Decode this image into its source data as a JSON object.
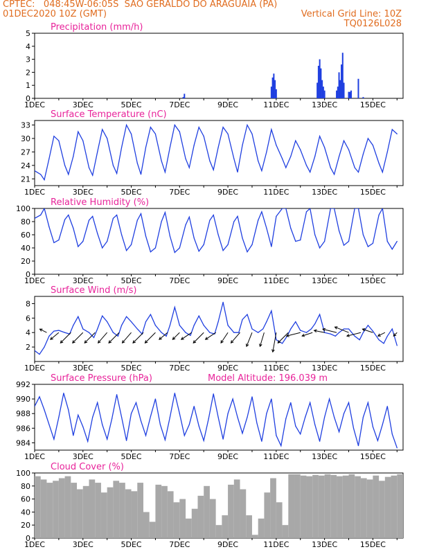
{
  "header": {
    "line1": "CPTEC:   048:45W-06:05S  SAO GERALDO DO ARAGUAIA (PA)",
    "line2_left": "01DEC2020 10Z (GMT)",
    "line2_right": "Vertical Grid Line: 10Z",
    "line3_right": "TQ0126L028"
  },
  "colors": {
    "header_text": "#e06c1f",
    "panel_title": "#e8239a",
    "series_line": "#1f3fe0",
    "cloud_fill": "#a8a8a8",
    "wind_arrow": "#000000"
  },
  "x_tick_labels": [
    "1DEC",
    "3DEC",
    "5DEC",
    "7DEC",
    "9DEC",
    "11DEC",
    "13DEC",
    "15DEC"
  ],
  "x_tick_days": [
    0,
    2,
    4,
    6,
    8,
    10,
    12,
    14
  ],
  "chart_data": [
    {
      "type": "bar",
      "title": "Precipitation  (mm/h)",
      "ylim": [
        0,
        5
      ],
      "yticks": [
        0,
        1,
        2,
        3,
        4,
        5
      ],
      "x": [
        6.15,
        6.2,
        9.8,
        9.85,
        9.9,
        9.95,
        10.0,
        11.7,
        11.75,
        11.8,
        11.85,
        11.9,
        11.95,
        12.0,
        12.5,
        12.55,
        12.6,
        12.65,
        12.7,
        12.75,
        12.8,
        13.0,
        13.05,
        13.1,
        13.4,
        13.6
      ],
      "values": [
        0.1,
        0.35,
        0.9,
        1.6,
        1.9,
        1.4,
        0.7,
        1.2,
        2.5,
        3.0,
        2.3,
        1.4,
        0.9,
        0.6,
        0.6,
        0.9,
        2.0,
        1.4,
        2.6,
        3.5,
        1.2,
        0.5,
        0.5,
        0.6,
        1.5,
        0.1
      ]
    },
    {
      "type": "line",
      "title": "Surface Temperature (nC)",
      "ylim": [
        19.5,
        34
      ],
      "yticks": [
        21,
        24,
        27,
        30,
        33
      ],
      "x": [
        0,
        0.25,
        0.4,
        0.6,
        0.8,
        1.0,
        1.25,
        1.4,
        1.6,
        1.8,
        2.0,
        2.25,
        2.4,
        2.6,
        2.8,
        3.0,
        3.25,
        3.4,
        3.6,
        3.8,
        4.0,
        4.25,
        4.4,
        4.6,
        4.8,
        5.0,
        5.25,
        5.4,
        5.6,
        5.8,
        6.0,
        6.25,
        6.4,
        6.6,
        6.8,
        7.0,
        7.25,
        7.4,
        7.6,
        7.8,
        8.0,
        8.25,
        8.4,
        8.6,
        8.8,
        9.0,
        9.25,
        9.4,
        9.6,
        9.8,
        10.0,
        10.25,
        10.4,
        10.6,
        10.8,
        11.0,
        11.25,
        11.4,
        11.6,
        11.8,
        12.0,
        12.25,
        12.4,
        12.6,
        12.8,
        13.0,
        13.25,
        13.4,
        13.6,
        13.8,
        14.0,
        14.25,
        14.4,
        14.6,
        14.8,
        15.0
      ],
      "values": [
        22.8,
        22.0,
        20.8,
        25.5,
        30.5,
        29.5,
        24.0,
        22.0,
        26.0,
        31.5,
        29.5,
        23.5,
        21.8,
        27.0,
        32.0,
        30.0,
        24.0,
        22.2,
        28.0,
        33.0,
        31.0,
        24.5,
        22.0,
        28.0,
        32.5,
        31.0,
        25.0,
        22.5,
        28.0,
        33.0,
        31.5,
        25.5,
        23.5,
        28.5,
        32.5,
        30.5,
        25.0,
        23.0,
        28.0,
        32.5,
        31.0,
        25.5,
        22.5,
        28.5,
        33.0,
        31.0,
        25.0,
        22.8,
        27.0,
        32.0,
        28.5,
        25.5,
        23.5,
        26.0,
        29.5,
        27.5,
        24.0,
        22.5,
        26.0,
        30.5,
        28.0,
        23.5,
        22.0,
        26.0,
        29.5,
        27.5,
        23.5,
        22.5,
        26.5,
        30.0,
        28.5,
        24.5,
        22.5,
        27.0,
        32.0,
        31.0
      ]
    },
    {
      "type": "line",
      "title": "Relative Humidity  (%)",
      "ylim": [
        0,
        100
      ],
      "yticks": [
        0,
        20,
        40,
        60,
        80,
        100
      ],
      "x": [
        0,
        0.25,
        0.4,
        0.6,
        0.8,
        1.0,
        1.25,
        1.4,
        1.6,
        1.8,
        2.0,
        2.25,
        2.4,
        2.6,
        2.8,
        3.0,
        3.25,
        3.4,
        3.6,
        3.8,
        4.0,
        4.25,
        4.4,
        4.6,
        4.8,
        5.0,
        5.25,
        5.4,
        5.6,
        5.8,
        6.0,
        6.25,
        6.4,
        6.6,
        6.8,
        7.0,
        7.25,
        7.4,
        7.6,
        7.8,
        8.0,
        8.25,
        8.4,
        8.6,
        8.8,
        9.0,
        9.25,
        9.4,
        9.6,
        9.8,
        10.0,
        10.25,
        10.4,
        10.6,
        10.8,
        11.0,
        11.25,
        11.4,
        11.6,
        11.8,
        12.0,
        12.25,
        12.4,
        12.6,
        12.8,
        13.0,
        13.25,
        13.4,
        13.6,
        13.8,
        14.0,
        14.25,
        14.4,
        14.6,
        14.8,
        15.0
      ],
      "values": [
        85,
        90,
        100,
        72,
        48,
        52,
        83,
        90,
        70,
        42,
        50,
        82,
        88,
        62,
        40,
        50,
        85,
        90,
        60,
        36,
        45,
        82,
        92,
        58,
        34,
        40,
        80,
        94,
        58,
        33,
        40,
        75,
        87,
        55,
        35,
        45,
        82,
        90,
        60,
        36,
        45,
        80,
        88,
        55,
        34,
        45,
        82,
        95,
        70,
        42,
        88,
        100,
        100,
        70,
        50,
        52,
        95,
        100,
        60,
        40,
        50,
        100,
        100,
        66,
        44,
        50,
        100,
        100,
        60,
        42,
        47,
        90,
        100,
        50,
        38,
        50
      ]
    },
    {
      "type": "line",
      "title": "Surface Wind  (m/s)",
      "ylim": [
        0,
        9
      ],
      "yticks": [
        2,
        4,
        6,
        8
      ],
      "x": [
        0,
        0.2,
        0.4,
        0.6,
        0.8,
        1.0,
        1.25,
        1.45,
        1.6,
        1.8,
        2.0,
        2.25,
        2.45,
        2.6,
        2.8,
        3.0,
        3.25,
        3.45,
        3.6,
        3.8,
        4.0,
        4.25,
        4.45,
        4.6,
        4.8,
        5.0,
        5.25,
        5.45,
        5.6,
        5.8,
        6.0,
        6.25,
        6.45,
        6.6,
        6.8,
        7.0,
        7.25,
        7.45,
        7.6,
        7.8,
        8.0,
        8.25,
        8.45,
        8.6,
        8.8,
        9.0,
        9.25,
        9.45,
        9.6,
        9.8,
        10.0,
        10.25,
        10.45,
        10.6,
        10.8,
        11.0,
        11.25,
        11.45,
        11.6,
        11.8,
        12.0,
        12.25,
        12.45,
        12.6,
        12.8,
        13.0,
        13.25,
        13.45,
        13.6,
        13.8,
        14.0,
        14.25,
        14.45,
        14.6,
        14.8,
        15.0
      ],
      "values": [
        1.5,
        1.0,
        2.0,
        3.5,
        4.2,
        4.3,
        4.0,
        3.8,
        5.0,
        6.2,
        4.5,
        4.0,
        3.3,
        4.5,
        6.3,
        5.5,
        4.0,
        3.5,
        5.0,
        6.2,
        5.5,
        4.5,
        3.8,
        5.5,
        6.5,
        5.0,
        4.0,
        3.5,
        5.0,
        7.5,
        5.0,
        4.0,
        3.6,
        5.0,
        6.3,
        5.0,
        4.0,
        3.8,
        5.5,
        8.2,
        5.0,
        4.0,
        4.0,
        5.8,
        6.5,
        4.5,
        4.0,
        4.5,
        5.5,
        7.0,
        3.0,
        2.5,
        3.5,
        4.5,
        5.5,
        4.3,
        4.0,
        4.5,
        5.2,
        6.5,
        4.0,
        3.8,
        3.5,
        4.0,
        4.5,
        4.5,
        3.5,
        3.0,
        4.0,
        5.0,
        4.2,
        3.0,
        2.5,
        3.5,
        4.5,
        2.2
      ],
      "vectors": {
        "x": [
          0.5,
          1.0,
          1.5,
          2.0,
          2.5,
          3.0,
          3.5,
          4.0,
          4.5,
          5.0,
          5.5,
          6.0,
          6.5,
          7.0,
          7.5,
          8.0,
          8.5,
          9.0,
          9.5,
          10.0,
          10.5,
          11.0,
          11.5,
          12.0,
          12.5,
          13.0,
          13.5,
          14.0,
          14.5,
          15.0
        ],
        "u": [
          -1.0,
          -1.2,
          -1.5,
          -1.5,
          -1.5,
          -1.3,
          -1.5,
          -1.3,
          -1.5,
          -1.5,
          -1.2,
          -1.0,
          -1.5,
          -1.5,
          -1.5,
          -1.0,
          -1.3,
          -0.8,
          -0.6,
          -0.5,
          -1.5,
          -2.0,
          -1.5,
          -1.5,
          -2.0,
          -2.0,
          -2.0,
          -1.5,
          -1.0,
          -0.5
        ],
        "v": [
          0.5,
          -1.0,
          -1.5,
          -1.5,
          -1.5,
          -1.5,
          -1.5,
          -1.5,
          -1.5,
          -1.5,
          -1.0,
          -1.0,
          -1.0,
          -1.5,
          -1.0,
          -1.5,
          -1.5,
          -2.0,
          -2.0,
          -2.8,
          -1.5,
          -0.5,
          -0.5,
          0.3,
          0.5,
          0.8,
          -0.5,
          0.5,
          -0.5,
          -0.5
        ]
      }
    },
    {
      "type": "line",
      "title": "Surface Pressure (hPa)",
      "annotation": "Model Altitude: 196.039  m",
      "ylim": [
        983,
        992
      ],
      "yticks": [
        984,
        986,
        988,
        990,
        992
      ],
      "x": [
        0,
        0.2,
        0.4,
        0.6,
        0.8,
        1.0,
        1.2,
        1.4,
        1.6,
        1.8,
        2.0,
        2.2,
        2.4,
        2.6,
        2.8,
        3.0,
        3.2,
        3.4,
        3.6,
        3.8,
        4.0,
        4.2,
        4.4,
        4.6,
        4.8,
        5.0,
        5.2,
        5.4,
        5.6,
        5.8,
        6.0,
        6.2,
        6.4,
        6.6,
        6.8,
        7.0,
        7.2,
        7.4,
        7.6,
        7.8,
        8.0,
        8.2,
        8.4,
        8.6,
        8.8,
        9.0,
        9.2,
        9.4,
        9.6,
        9.8,
        10.0,
        10.2,
        10.4,
        10.6,
        10.8,
        11.0,
        11.2,
        11.4,
        11.6,
        11.8,
        12.0,
        12.2,
        12.4,
        12.6,
        12.8,
        13.0,
        13.2,
        13.4,
        13.6,
        13.8,
        14.0,
        14.2,
        14.4,
        14.6,
        14.8,
        15.0
      ],
      "values": [
        989.0,
        990.3,
        988.5,
        986.5,
        984.5,
        987.5,
        990.8,
        988.5,
        985.0,
        987.8,
        986.2,
        984.2,
        987.5,
        989.5,
        986.5,
        984.5,
        987.3,
        990.6,
        987.5,
        984.3,
        988.0,
        989.5,
        987.0,
        985.0,
        987.6,
        990.0,
        986.5,
        984.4,
        987.5,
        990.8,
        988.0,
        985.0,
        986.5,
        989.0,
        986.3,
        984.3,
        987.3,
        990.7,
        987.5,
        984.5,
        988.0,
        990.0,
        987.5,
        985.3,
        987.5,
        990.3,
        986.7,
        984.2,
        988.0,
        990.0,
        985.0,
        983.6,
        987.3,
        989.5,
        986.3,
        985.2,
        987.5,
        989.5,
        986.5,
        984.2,
        987.5,
        990.0,
        987.5,
        985.5,
        988.0,
        989.5,
        986.0,
        983.6,
        987.5,
        989.5,
        986.2,
        984.3,
        986.5,
        989.0,
        985.2,
        983.3
      ]
    },
    {
      "type": "bar",
      "title": "Cloud Cover  (%)",
      "ylim": [
        0,
        100
      ],
      "yticks": [
        0,
        20,
        40,
        60,
        80,
        100
      ],
      "x": [
        0,
        0.25,
        0.5,
        0.75,
        1.0,
        1.25,
        1.5,
        1.75,
        2.0,
        2.25,
        2.5,
        2.75,
        3.0,
        3.25,
        3.5,
        3.75,
        4.0,
        4.25,
        4.5,
        4.75,
        5.0,
        5.25,
        5.5,
        5.75,
        6.0,
        6.25,
        6.5,
        6.75,
        7.0,
        7.25,
        7.5,
        7.75,
        8.0,
        8.25,
        8.5,
        8.75,
        9.0,
        9.25,
        9.5,
        9.75,
        10.0,
        10.25,
        10.5,
        10.75,
        11.0,
        11.25,
        11.5,
        11.75,
        12.0,
        12.25,
        12.5,
        12.75,
        13.0,
        13.25,
        13.5,
        13.75,
        14.0,
        14.25,
        14.5,
        14.75,
        15.0
      ],
      "values": [
        95,
        90,
        85,
        88,
        92,
        95,
        85,
        75,
        80,
        90,
        85,
        70,
        78,
        88,
        85,
        75,
        72,
        85,
        40,
        25,
        82,
        80,
        72,
        55,
        60,
        30,
        45,
        65,
        80,
        60,
        20,
        35,
        82,
        90,
        75,
        35,
        5,
        30,
        70,
        92,
        55,
        20,
        98,
        98,
        96,
        95,
        97,
        96,
        98,
        97,
        95,
        96,
        98,
        95,
        92,
        90,
        96,
        88,
        94,
        96,
        98
      ]
    }
  ]
}
